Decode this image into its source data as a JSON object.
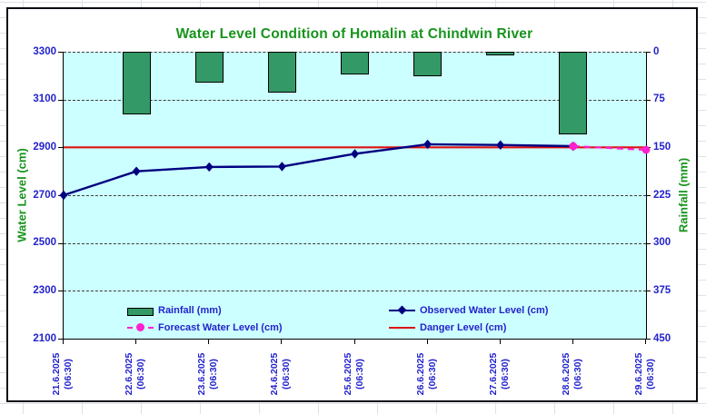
{
  "chart_data": {
    "type": "bar+line combo",
    "title": "Water Level Condition of Homalin at Chindwin River",
    "x": {
      "dates": [
        "21.6.2025",
        "22.6.2025",
        "23.6.2025",
        "24.6.2025",
        "25.6.2025",
        "26.6.2025",
        "27.6.2025",
        "28.6.2025",
        "29.6.2025"
      ],
      "time_suffix": "(06:30)"
    },
    "left_axis": {
      "title": "Water Level (cm)",
      "min": 2100,
      "max": 3300,
      "step": 200,
      "ticks": [
        3300,
        3100,
        2900,
        2700,
        2500,
        2300,
        2100
      ]
    },
    "right_axis": {
      "title": "Rainfall (mm)",
      "min": 0,
      "max": 450,
      "step": 75,
      "inverted": true,
      "ticks": [
        0,
        75,
        150,
        225,
        300,
        375,
        450
      ]
    },
    "series": [
      {
        "name": "Rainfall (mm)",
        "type": "bar",
        "axis": "right",
        "color": "#339966",
        "values": [
          0,
          98,
          49,
          64,
          35,
          38,
          6,
          130,
          0
        ]
      },
      {
        "name": "Observed Water Level (cm)",
        "type": "line",
        "marker": "diamond",
        "axis": "left",
        "color": "#000080",
        "values": [
          2700,
          2800,
          2818,
          2820,
          2873,
          2913,
          2910,
          2905,
          null
        ]
      },
      {
        "name": "Forecast Water Level (cm)",
        "type": "dashed-line",
        "marker": "circle",
        "axis": "left",
        "color": "#ff1fd0",
        "values": [
          null,
          null,
          null,
          null,
          null,
          null,
          null,
          2905,
          2890
        ]
      },
      {
        "name": "Danger Level (cm)",
        "type": "horizontal-line",
        "axis": "left",
        "color": "#dd1111",
        "value": 2900
      }
    ],
    "legend": {
      "position": "inside-bottom",
      "columns": 2
    },
    "plot_bg": "#CCFFFF",
    "grid": "horizontal-dashed",
    "text_colors": {
      "title": "#17941c",
      "axis_titles": "#17941c",
      "tick_labels": "#2323cc",
      "legend": "#2323cc"
    }
  }
}
